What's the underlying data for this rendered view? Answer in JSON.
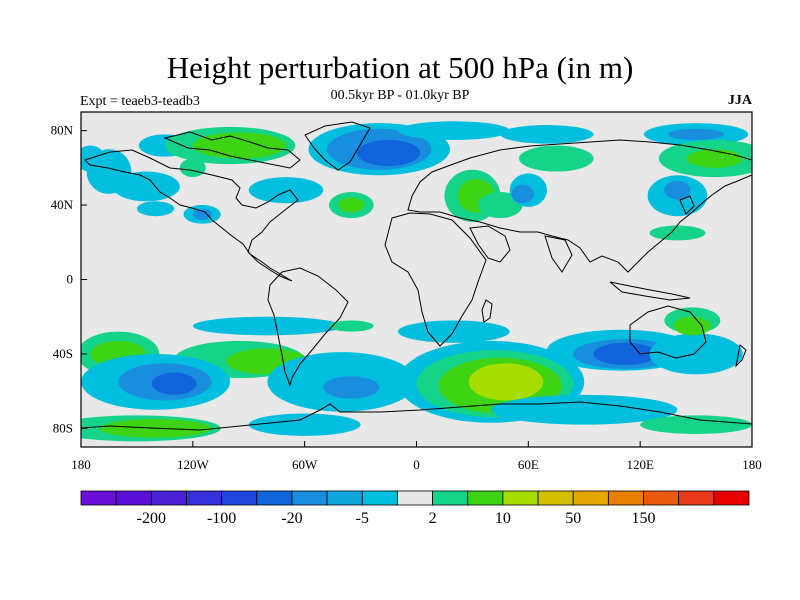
{
  "header": {
    "title": "Height perturbation at 500 hPa (in m)",
    "subtitle": "00.5kyr BP - 01.0kyr BP",
    "experiment": "Expt = teaeb3-teadb3",
    "season": "JJA"
  },
  "map": {
    "projection": "cylindrical equidistant",
    "lon_range": [
      -180,
      180
    ],
    "lat_range": [
      -90,
      90
    ],
    "lat_ticks": [
      {
        "value": 80,
        "label": "80N"
      },
      {
        "value": 40,
        "label": "40N"
      },
      {
        "value": 0,
        "label": "0"
      },
      {
        "value": -40,
        "label": "40S"
      },
      {
        "value": -80,
        "label": "80S"
      }
    ],
    "lon_ticks": [
      {
        "value": -180,
        "label": "180"
      },
      {
        "value": -120,
        "label": "120W"
      },
      {
        "value": -60,
        "label": "60W"
      },
      {
        "value": 0,
        "label": "0"
      },
      {
        "value": 60,
        "label": "60E"
      },
      {
        "value": 120,
        "label": "120E"
      },
      {
        "value": 180,
        "label": "180"
      }
    ],
    "background_color": "#e8e8e8"
  },
  "colorbar": {
    "colors": [
      "#6a0fd8",
      "#5a10d6",
      "#4a22d8",
      "#3530dc",
      "#1f45dc",
      "#1065dc",
      "#1a8ede",
      "#0fa6dc",
      "#00bede",
      "#e8e8e8",
      "#15d48a",
      "#3ed313",
      "#a6dc00",
      "#d2c000",
      "#e6a500",
      "#e68000",
      "#e85a10",
      "#e63a1a",
      "#e60000"
    ],
    "labels": [
      {
        "text": "-200",
        "index": 1
      },
      {
        "text": "-100",
        "index": 3
      },
      {
        "text": "-20",
        "index": 5
      },
      {
        "text": "-5",
        "index": 7
      },
      {
        "text": "2",
        "index": 9
      },
      {
        "text": "10",
        "index": 11
      },
      {
        "text": "50",
        "index": 13
      },
      {
        "text": "150",
        "index": 15
      }
    ]
  },
  "anomalies": [
    {
      "lon": -135,
      "lat": 72,
      "rx": 14,
      "ry": 6,
      "level": "light-blue"
    },
    {
      "lon": -100,
      "lat": 72,
      "rx": 35,
      "ry": 10,
      "level": "teal"
    },
    {
      "lon": -95,
      "lat": 72,
      "rx": 25,
      "ry": 7,
      "level": "green"
    },
    {
      "lon": -120,
      "lat": 60,
      "rx": 7,
      "ry": 5,
      "level": "teal"
    },
    {
      "lon": -20,
      "lat": 70,
      "rx": 38,
      "ry": 14,
      "level": "light-blue"
    },
    {
      "lon": -20,
      "lat": 70,
      "rx": 28,
      "ry": 11,
      "level": "mid-blue"
    },
    {
      "lon": -15,
      "lat": 68,
      "rx": 17,
      "ry": 7,
      "level": "blue"
    },
    {
      "lon": 20,
      "lat": 80,
      "rx": 30,
      "ry": 5,
      "level": "light-blue"
    },
    {
      "lon": 70,
      "lat": 78,
      "rx": 25,
      "ry": 5,
      "level": "light-blue"
    },
    {
      "lon": 150,
      "lat": 78,
      "rx": 28,
      "ry": 6,
      "level": "light-blue"
    },
    {
      "lon": 150,
      "lat": 78,
      "rx": 15,
      "ry": 3,
      "level": "mid-blue"
    },
    {
      "lon": 160,
      "lat": 65,
      "rx": 30,
      "ry": 10,
      "level": "teal"
    },
    {
      "lon": 160,
      "lat": 65,
      "rx": 15,
      "ry": 5,
      "level": "green"
    },
    {
      "lon": 75,
      "lat": 65,
      "rx": 20,
      "ry": 7,
      "level": "teal"
    },
    {
      "lon": 140,
      "lat": 45,
      "rx": 16,
      "ry": 11,
      "level": "light-blue"
    },
    {
      "lon": 140,
      "lat": 48,
      "rx": 7,
      "ry": 5,
      "level": "mid-blue"
    },
    {
      "lon": 140,
      "lat": 25,
      "rx": 15,
      "ry": 4,
      "level": "teal"
    },
    {
      "lon": -165,
      "lat": 58,
      "rx": 12,
      "ry": 12,
      "level": "light-blue"
    },
    {
      "lon": -175,
      "lat": 65,
      "rx": 8,
      "ry": 7,
      "level": "light-blue"
    },
    {
      "lon": -145,
      "lat": 50,
      "rx": 18,
      "ry": 8,
      "level": "light-blue"
    },
    {
      "lon": -70,
      "lat": 48,
      "rx": 20,
      "ry": 7,
      "level": "light-blue"
    },
    {
      "lon": -115,
      "lat": 35,
      "rx": 10,
      "ry": 5,
      "level": "light-blue"
    },
    {
      "lon": -115,
      "lat": 35,
      "rx": 5,
      "ry": 3,
      "level": "mid-blue"
    },
    {
      "lon": -140,
      "lat": 38,
      "rx": 10,
      "ry": 4,
      "level": "light-blue"
    },
    {
      "lon": -35,
      "lat": 40,
      "rx": 12,
      "ry": 7,
      "level": "teal"
    },
    {
      "lon": -35,
      "lat": 40,
      "rx": 7,
      "ry": 4,
      "level": "green"
    },
    {
      "lon": 30,
      "lat": 45,
      "rx": 15,
      "ry": 14,
      "level": "teal"
    },
    {
      "lon": 32,
      "lat": 45,
      "rx": 10,
      "ry": 9,
      "level": "green"
    },
    {
      "lon": 45,
      "lat": 40,
      "rx": 12,
      "ry": 7,
      "level": "teal"
    },
    {
      "lon": 60,
      "lat": 48,
      "rx": 10,
      "ry": 9,
      "level": "light-blue"
    },
    {
      "lon": 57,
      "lat": 46,
      "rx": 6,
      "ry": 5,
      "level": "mid-blue"
    },
    {
      "lon": -160,
      "lat": -40,
      "rx": 22,
      "ry": 12,
      "level": "teal"
    },
    {
      "lon": -160,
      "lat": -40,
      "rx": 15,
      "ry": 7,
      "level": "green"
    },
    {
      "lon": -80,
      "lat": -25,
      "rx": 40,
      "ry": 5,
      "level": "light-blue"
    },
    {
      "lon": -35,
      "lat": -25,
      "rx": 12,
      "ry": 3,
      "level": "teal"
    },
    {
      "lon": 20,
      "lat": -28,
      "rx": 30,
      "ry": 6,
      "level": "light-blue"
    },
    {
      "lon": -95,
      "lat": -43,
      "rx": 35,
      "ry": 10,
      "level": "teal"
    },
    {
      "lon": -80,
      "lat": -44,
      "rx": 22,
      "ry": 7,
      "level": "green"
    },
    {
      "lon": -140,
      "lat": -55,
      "rx": 40,
      "ry": 15,
      "level": "light-blue"
    },
    {
      "lon": -135,
      "lat": -55,
      "rx": 25,
      "ry": 10,
      "level": "mid-blue"
    },
    {
      "lon": -130,
      "lat": -56,
      "rx": 12,
      "ry": 6,
      "level": "blue"
    },
    {
      "lon": -40,
      "lat": -55,
      "rx": 40,
      "ry": 16,
      "level": "light-blue"
    },
    {
      "lon": -35,
      "lat": -58,
      "rx": 15,
      "ry": 6,
      "level": "mid-blue"
    },
    {
      "lon": 40,
      "lat": -55,
      "rx": 50,
      "ry": 22,
      "level": "light-blue"
    },
    {
      "lon": 42,
      "lat": -56,
      "rx": 42,
      "ry": 18,
      "level": "teal"
    },
    {
      "lon": 45,
      "lat": -57,
      "rx": 33,
      "ry": 15,
      "level": "green"
    },
    {
      "lon": 48,
      "lat": -55,
      "rx": 20,
      "ry": 10,
      "level": "lime"
    },
    {
      "lon": 110,
      "lat": -38,
      "rx": 40,
      "ry": 11,
      "level": "light-blue"
    },
    {
      "lon": 112,
      "lat": -40,
      "rx": 28,
      "ry": 8,
      "level": "mid-blue"
    },
    {
      "lon": 112,
      "lat": -40,
      "rx": 17,
      "ry": 6,
      "level": "blue"
    },
    {
      "lon": 150,
      "lat": -40,
      "rx": 25,
      "ry": 11,
      "level": "light-blue"
    },
    {
      "lon": 148,
      "lat": -22,
      "rx": 15,
      "ry": 7,
      "level": "teal"
    },
    {
      "lon": 148,
      "lat": -25,
      "rx": 10,
      "ry": 5,
      "level": "green"
    },
    {
      "lon": -150,
      "lat": -80,
      "rx": 45,
      "ry": 7,
      "level": "teal"
    },
    {
      "lon": -140,
      "lat": -80,
      "rx": 30,
      "ry": 5,
      "level": "green"
    },
    {
      "lon": -60,
      "lat": -78,
      "rx": 30,
      "ry": 6,
      "level": "light-blue"
    },
    {
      "lon": 90,
      "lat": -70,
      "rx": 50,
      "ry": 8,
      "level": "light-blue"
    },
    {
      "lon": 150,
      "lat": -78,
      "rx": 30,
      "ry": 5,
      "level": "teal"
    }
  ]
}
